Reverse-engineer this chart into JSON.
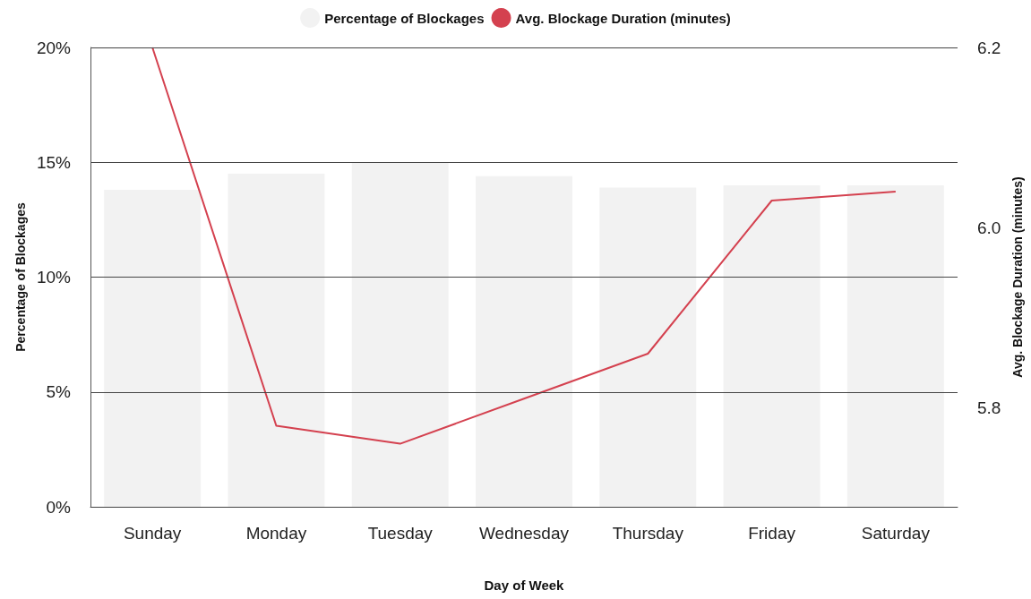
{
  "chart_data": {
    "type": "bar",
    "xlabel": "Day of Week",
    "ylabel": "Percentage of Blockages",
    "y2label": "Avg. Blockage Duration (minutes)",
    "categories": [
      "Sunday",
      "Monday",
      "Tuesday",
      "Wednesday",
      "Thursday",
      "Friday",
      "Saturday"
    ],
    "series": [
      {
        "name": "Percentage of Blockages",
        "color": "#f2f2f2",
        "values": [
          13.8,
          14.5,
          15.0,
          14.4,
          13.9,
          14.0,
          14.0
        ]
      },
      {
        "name": "Avg. Blockage Duration (minutes)",
        "type": "line",
        "axis": "y2",
        "color": "#d4414f",
        "values": [
          6.2,
          5.78,
          5.76,
          5.81,
          5.86,
          6.03,
          6.04
        ]
      }
    ],
    "ylim": [
      0,
      20
    ],
    "yticks": [
      {
        "value": 0,
        "label": "0%"
      },
      {
        "value": 5,
        "label": "5%"
      },
      {
        "value": 10,
        "label": "10%"
      },
      {
        "value": 15,
        "label": "15%"
      },
      {
        "value": 20,
        "label": "20%"
      }
    ],
    "y2lim": [
      5.69,
      6.2
    ],
    "y2ticks": [
      {
        "value": 5.8,
        "label": "5.8"
      },
      {
        "value": 6.0,
        "label": "6.0"
      },
      {
        "value": 6.2,
        "label": "6.2"
      }
    ],
    "grid": "y",
    "legend": "top",
    "marker": "none"
  }
}
